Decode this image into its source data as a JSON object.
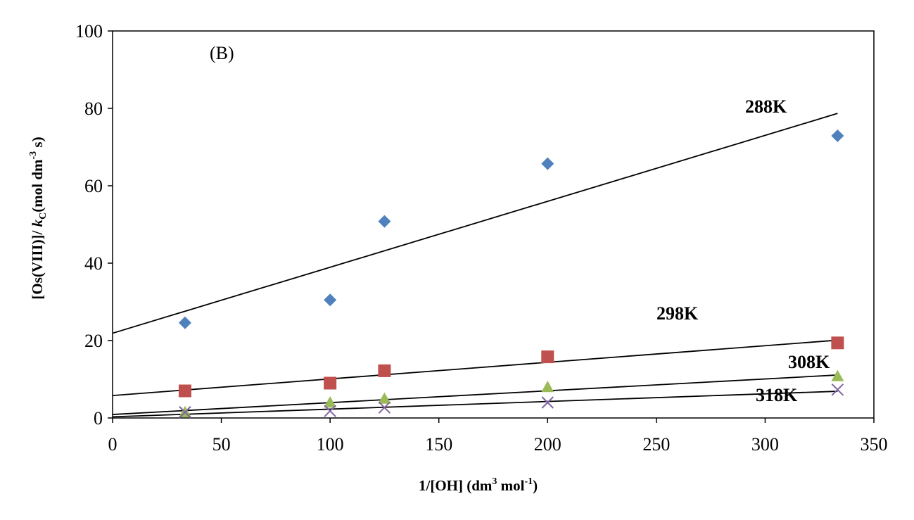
{
  "chart_data": {
    "type": "scatter",
    "panel_label": "(B)",
    "xlabel_parts": [
      "1/[OH] (dm",
      "3",
      " mol",
      "-1",
      ")"
    ],
    "ylabel_parts": [
      "[Os(VIII)]/ ",
      "k",
      "C",
      "(mol dm",
      "-3",
      " s)"
    ],
    "xlim": [
      0,
      350
    ],
    "ylim": [
      0,
      100
    ],
    "x_ticks": [
      0,
      50,
      100,
      150,
      200,
      250,
      300,
      350
    ],
    "y_ticks": [
      0,
      20,
      40,
      60,
      80,
      100
    ],
    "grid": false,
    "series": [
      {
        "name": "288K",
        "marker": "diamond",
        "color": "#4F81BD",
        "points": [
          [
            33.3,
            24.6
          ],
          [
            100,
            30.5
          ],
          [
            125,
            50.8
          ],
          [
            200,
            65.7
          ],
          [
            333.3,
            72.9
          ]
        ],
        "trendline": {
          "x": [
            0,
            333.3
          ],
          "y": [
            21.9,
            78.7
          ]
        }
      },
      {
        "name": "298K",
        "marker": "square",
        "color": "#C0504D",
        "points": [
          [
            33.3,
            7.0
          ],
          [
            100,
            9.0
          ],
          [
            125,
            12.2
          ],
          [
            200,
            15.8
          ],
          [
            333.3,
            19.4
          ]
        ],
        "trendline": {
          "x": [
            0,
            333.3
          ],
          "y": [
            5.8,
            20.1
          ]
        }
      },
      {
        "name": "308K",
        "marker": "triangle",
        "color": "#9BBB59",
        "points": [
          [
            33.3,
            1.5
          ],
          [
            100,
            4.0
          ],
          [
            125,
            5.0
          ],
          [
            200,
            8.0
          ],
          [
            333.3,
            10.8
          ]
        ],
        "trendline": {
          "x": [
            0,
            333.3
          ],
          "y": [
            0.9,
            11.1
          ]
        }
      },
      {
        "name": "318K",
        "marker": "x",
        "color": "#8064A2",
        "points": [
          [
            33.3,
            1.5
          ],
          [
            100,
            1.8
          ],
          [
            125,
            2.7
          ],
          [
            200,
            4.0
          ],
          [
            333.3,
            7.3
          ]
        ],
        "trendline": {
          "x": [
            0,
            333.3
          ],
          "y": [
            0.3,
            6.9
          ]
        }
      }
    ]
  }
}
